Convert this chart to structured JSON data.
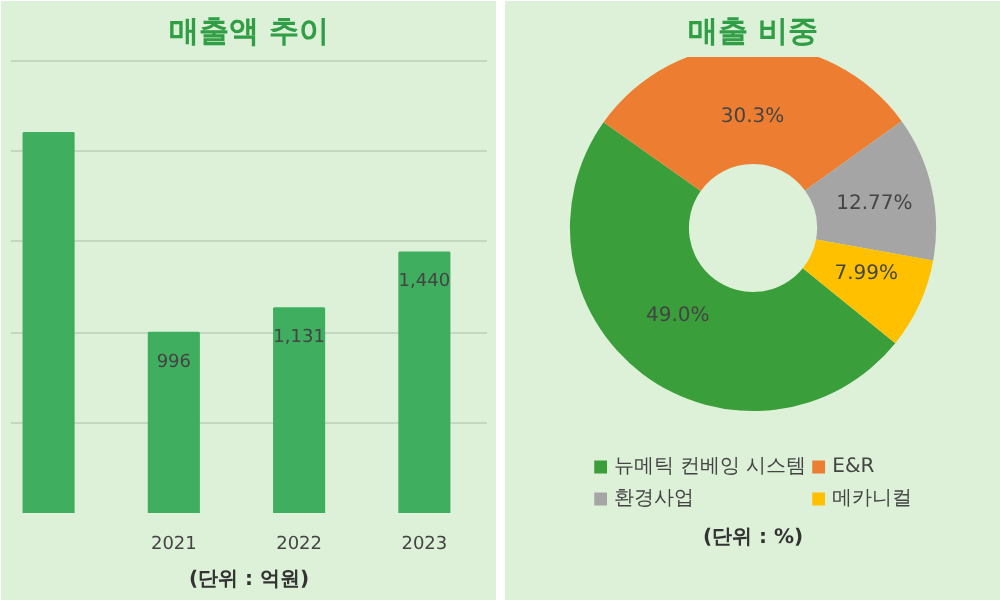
{
  "chart_data": [
    {
      "type": "bar",
      "title": "매출액 추이",
      "categories": [
        null,
        "2021",
        "2022",
        "2023"
      ],
      "values": [
        2100,
        996,
        1131,
        1440
      ],
      "value_labels": [
        null,
        "996",
        "1,131",
        "1,440"
      ],
      "color": "#3fae5f",
      "grid": "y",
      "tick_labels": "x",
      "annotations": [
        "(단위 : 억원)"
      ]
    },
    {
      "type": "donut",
      "title": "매출 비중",
      "categories": [
        "뉴메틱 컨베잉 시스템",
        "E&R",
        "환경사업",
        "메카니컬"
      ],
      "values": [
        49.0,
        30.3,
        12.77,
        7.99
      ],
      "colors": [
        "#3a9e3a",
        "#ed7d31",
        "#a5a5a5",
        "#ffc000"
      ],
      "value_labels": [
        "49.0%",
        "30.3%",
        "12.77%",
        "7.99%"
      ],
      "legend": "bottom",
      "annotations": [
        "(단위 : %)"
      ]
    }
  ]
}
